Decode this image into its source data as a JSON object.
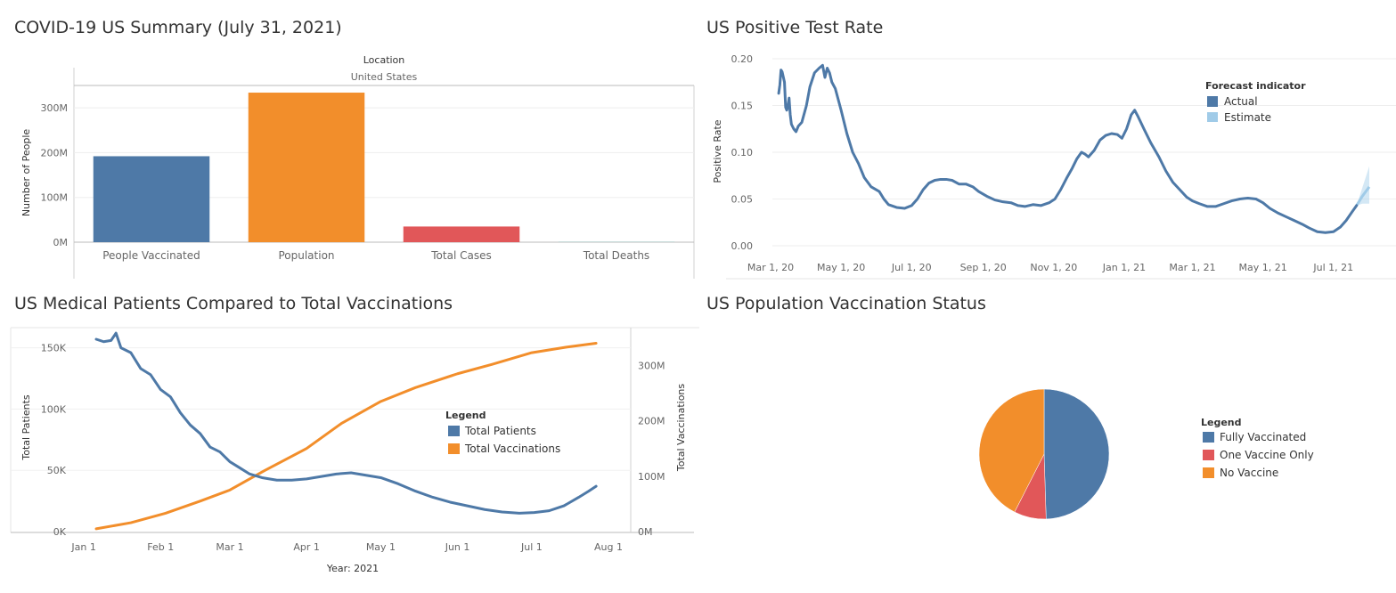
{
  "dashboard": {
    "titles": {
      "summary": "COVID-19 US Summary (July 31, 2021)",
      "positive_rate": "US Positive Test Rate",
      "medical": "US Medical Patients Compared to Total Vaccinations",
      "vax_status": "US Population Vaccination Status"
    }
  },
  "chart_data": [
    {
      "id": "summary",
      "type": "bar",
      "title": "COVID-19 US Summary (July 31, 2021)",
      "header_title": "Location",
      "header_value": "United States",
      "categories": [
        "People Vaccinated",
        "Population",
        "Total Cases",
        "Total Deaths"
      ],
      "values": [
        192000000,
        334000000,
        35000000,
        613000
      ],
      "colors": [
        "#4e79a7",
        "#f28e2b",
        "#e15759",
        "#76b7b2"
      ],
      "ylabel": "Number of People",
      "ylim": [
        0,
        350000000
      ],
      "yticks": [
        {
          "value": 0,
          "label": "0M"
        },
        {
          "value": 100000000,
          "label": "100M"
        },
        {
          "value": 200000000,
          "label": "200M"
        },
        {
          "value": 300000000,
          "label": "300M"
        }
      ]
    },
    {
      "id": "positive_rate",
      "type": "line",
      "title": "US Positive Test Rate",
      "ylabel": "Positive Rate",
      "ylim": [
        0,
        0.2
      ],
      "xlim": [
        "2020-03-01",
        "2021-08-01"
      ],
      "yticks": [
        {
          "value": 0,
          "label": "0.00"
        },
        {
          "value": 0.05,
          "label": "0.05"
        },
        {
          "value": 0.1,
          "label": "0.10"
        },
        {
          "value": 0.15,
          "label": "0.15"
        },
        {
          "value": 0.2,
          "label": "0.20"
        }
      ],
      "xticks": [
        {
          "value": "2020-03-01",
          "label": "Mar 1, 20"
        },
        {
          "value": "2020-05-01",
          "label": "May 1, 20"
        },
        {
          "value": "2020-07-01",
          "label": "Jul 1, 20"
        },
        {
          "value": "2020-09-01",
          "label": "Sep 1, 20"
        },
        {
          "value": "2020-11-01",
          "label": "Nov 1, 20"
        },
        {
          "value": "2021-01-01",
          "label": "Jan 1, 21"
        },
        {
          "value": "2021-03-01",
          "label": "Mar 1, 21"
        },
        {
          "value": "2021-05-01",
          "label": "May 1, 21"
        },
        {
          "value": "2021-07-01",
          "label": "Jul 1, 21"
        }
      ],
      "legend_title": "Forecast indicator",
      "legend": [
        {
          "name": "Actual",
          "color": "#4e79a7"
        },
        {
          "name": "Estimate",
          "color": "#a0cbe8"
        }
      ],
      "series": [
        {
          "name": "Actual",
          "color": "#4e79a7",
          "points": [
            [
              "2020-03-08",
              0.163
            ],
            [
              "2020-03-09",
              0.172
            ],
            [
              "2020-03-10",
              0.188
            ],
            [
              "2020-03-11",
              0.186
            ],
            [
              "2020-03-13",
              0.175
            ],
            [
              "2020-03-14",
              0.148
            ],
            [
              "2020-03-15",
              0.145
            ],
            [
              "2020-03-16",
              0.15
            ],
            [
              "2020-03-17",
              0.158
            ],
            [
              "2020-03-18",
              0.14
            ],
            [
              "2020-03-19",
              0.13
            ],
            [
              "2020-03-21",
              0.125
            ],
            [
              "2020-03-23",
              0.122
            ],
            [
              "2020-03-25",
              0.128
            ],
            [
              "2020-03-28",
              0.132
            ],
            [
              "2020-04-01",
              0.15
            ],
            [
              "2020-04-04",
              0.17
            ],
            [
              "2020-04-08",
              0.185
            ],
            [
              "2020-04-12",
              0.19
            ],
            [
              "2020-04-15",
              0.193
            ],
            [
              "2020-04-17",
              0.18
            ],
            [
              "2020-04-19",
              0.19
            ],
            [
              "2020-04-21",
              0.185
            ],
            [
              "2020-04-23",
              0.175
            ],
            [
              "2020-04-26",
              0.168
            ],
            [
              "2020-05-01",
              0.145
            ],
            [
              "2020-05-06",
              0.12
            ],
            [
              "2020-05-11",
              0.1
            ],
            [
              "2020-05-16",
              0.088
            ],
            [
              "2020-05-21",
              0.073
            ],
            [
              "2020-05-27",
              0.063
            ],
            [
              "2020-06-03",
              0.058
            ],
            [
              "2020-06-07",
              0.05
            ],
            [
              "2020-06-11",
              0.044
            ],
            [
              "2020-06-18",
              0.041
            ],
            [
              "2020-06-25",
              0.04
            ],
            [
              "2020-07-01",
              0.043
            ],
            [
              "2020-07-06",
              0.05
            ],
            [
              "2020-07-11",
              0.06
            ],
            [
              "2020-07-16",
              0.067
            ],
            [
              "2020-07-21",
              0.07
            ],
            [
              "2020-07-26",
              0.071
            ],
            [
              "2020-07-31",
              0.071
            ],
            [
              "2020-08-05",
              0.07
            ],
            [
              "2020-08-11",
              0.066
            ],
            [
              "2020-08-17",
              0.066
            ],
            [
              "2020-08-23",
              0.063
            ],
            [
              "2020-08-28",
              0.058
            ],
            [
              "2020-09-04",
              0.053
            ],
            [
              "2020-09-11",
              0.049
            ],
            [
              "2020-09-18",
              0.047
            ],
            [
              "2020-09-25",
              0.046
            ],
            [
              "2020-10-01",
              0.043
            ],
            [
              "2020-10-07",
              0.042
            ],
            [
              "2020-10-14",
              0.044
            ],
            [
              "2020-10-21",
              0.043
            ],
            [
              "2020-10-28",
              0.046
            ],
            [
              "2020-11-02",
              0.05
            ],
            [
              "2020-11-07",
              0.06
            ],
            [
              "2020-11-12",
              0.072
            ],
            [
              "2020-11-17",
              0.083
            ],
            [
              "2020-11-21",
              0.093
            ],
            [
              "2020-11-25",
              0.1
            ],
            [
              "2020-11-28",
              0.098
            ],
            [
              "2020-12-01",
              0.095
            ],
            [
              "2020-12-06",
              0.102
            ],
            [
              "2020-12-11",
              0.113
            ],
            [
              "2020-12-16",
              0.118
            ],
            [
              "2020-12-21",
              0.12
            ],
            [
              "2020-12-26",
              0.119
            ],
            [
              "2020-12-30",
              0.115
            ],
            [
              "2021-01-03",
              0.125
            ],
            [
              "2021-01-07",
              0.14
            ],
            [
              "2021-01-10",
              0.145
            ],
            [
              "2021-01-13",
              0.138
            ],
            [
              "2021-01-18",
              0.125
            ],
            [
              "2021-01-24",
              0.11
            ],
            [
              "2021-01-31",
              0.095
            ],
            [
              "2021-02-06",
              0.08
            ],
            [
              "2021-02-12",
              0.068
            ],
            [
              "2021-02-18",
              0.06
            ],
            [
              "2021-02-24",
              0.052
            ],
            [
              "2021-03-01",
              0.048
            ],
            [
              "2021-03-07",
              0.045
            ],
            [
              "2021-03-14",
              0.042
            ],
            [
              "2021-03-21",
              0.042
            ],
            [
              "2021-03-28",
              0.045
            ],
            [
              "2021-04-04",
              0.048
            ],
            [
              "2021-04-11",
              0.05
            ],
            [
              "2021-04-18",
              0.051
            ],
            [
              "2021-04-25",
              0.05
            ],
            [
              "2021-05-01",
              0.046
            ],
            [
              "2021-05-07",
              0.04
            ],
            [
              "2021-05-14",
              0.035
            ],
            [
              "2021-05-21",
              0.031
            ],
            [
              "2021-05-28",
              0.027
            ],
            [
              "2021-06-04",
              0.023
            ],
            [
              "2021-06-10",
              0.019
            ],
            [
              "2021-06-17",
              0.015
            ],
            [
              "2021-06-24",
              0.014
            ],
            [
              "2021-07-01",
              0.015
            ],
            [
              "2021-07-07",
              0.02
            ],
            [
              "2021-07-12",
              0.027
            ],
            [
              "2021-07-17",
              0.036
            ],
            [
              "2021-07-21",
              0.043
            ]
          ]
        },
        {
          "name": "Estimate",
          "color": "#a0cbe8",
          "points": [
            [
              "2021-07-21",
              0.043
            ],
            [
              "2021-07-26",
              0.053
            ],
            [
              "2021-08-01",
              0.063
            ]
          ],
          "band_upper": [
            [
              "2021-07-21",
              0.043
            ],
            [
              "2021-07-26",
              0.062
            ],
            [
              "2021-08-01",
              0.085
            ]
          ],
          "band_lower": [
            [
              "2021-07-21",
              0.043
            ],
            [
              "2021-07-26",
              0.045
            ],
            [
              "2021-08-01",
              0.045
            ]
          ]
        }
      ]
    },
    {
      "id": "medical",
      "type": "line",
      "title": "US Medical Patients Compared to Total Vaccinations",
      "xlabel": "Year: 2021",
      "ylabel": "Total Patients",
      "y2label": "Total Vaccinations",
      "xlim": [
        "2020-12-28",
        "2021-08-10"
      ],
      "ylim": [
        0,
        165000
      ],
      "y2lim": [
        0,
        365000000
      ],
      "yticks": [
        {
          "value": 0,
          "label": "0K"
        },
        {
          "value": 50000,
          "label": "50K"
        },
        {
          "value": 100000,
          "label": "100K"
        },
        {
          "value": 150000,
          "label": "150K"
        }
      ],
      "y2ticks": [
        {
          "value": 0,
          "label": "0M"
        },
        {
          "value": 100000000,
          "label": "100M"
        },
        {
          "value": 200000000,
          "label": "200M"
        },
        {
          "value": 300000000,
          "label": "300M"
        }
      ],
      "xticks": [
        {
          "value": "2021-01-01",
          "label": "Jan 1"
        },
        {
          "value": "2021-02-01",
          "label": "Feb 1"
        },
        {
          "value": "2021-03-01",
          "label": "Mar 1"
        },
        {
          "value": "2021-04-01",
          "label": "Apr 1"
        },
        {
          "value": "2021-05-01",
          "label": "May 1"
        },
        {
          "value": "2021-06-01",
          "label": "Jun 1"
        },
        {
          "value": "2021-07-01",
          "label": "Jul 1"
        },
        {
          "value": "2021-08-01",
          "label": "Aug 1"
        }
      ],
      "legend_title": "Legend",
      "legend": [
        {
          "name": "Total Patients",
          "color": "#4e79a7"
        },
        {
          "name": "Total Vaccinations",
          "color": "#f28e2b"
        }
      ],
      "series": [
        {
          "name": "Total Patients",
          "color": "#4e79a7",
          "axis": "left",
          "points": [
            [
              "2021-01-06",
              157000
            ],
            [
              "2021-01-09",
              155000
            ],
            [
              "2021-01-12",
              156000
            ],
            [
              "2021-01-14",
              162000
            ],
            [
              "2021-01-16",
              150000
            ],
            [
              "2021-01-20",
              146000
            ],
            [
              "2021-01-24",
              133000
            ],
            [
              "2021-01-28",
              128000
            ],
            [
              "2021-02-01",
              116000
            ],
            [
              "2021-02-05",
              110000
            ],
            [
              "2021-02-09",
              97000
            ],
            [
              "2021-02-13",
              87000
            ],
            [
              "2021-02-17",
              80000
            ],
            [
              "2021-02-21",
              69000
            ],
            [
              "2021-02-25",
              65000
            ],
            [
              "2021-03-01",
              57000
            ],
            [
              "2021-03-05",
              52000
            ],
            [
              "2021-03-09",
              47000
            ],
            [
              "2021-03-14",
              44000
            ],
            [
              "2021-03-20",
              42000
            ],
            [
              "2021-03-26",
              42000
            ],
            [
              "2021-04-01",
              43000
            ],
            [
              "2021-04-07",
              45000
            ],
            [
              "2021-04-13",
              47000
            ],
            [
              "2021-04-19",
              48000
            ],
            [
              "2021-04-25",
              46000
            ],
            [
              "2021-05-01",
              44000
            ],
            [
              "2021-05-08",
              39000
            ],
            [
              "2021-05-15",
              33000
            ],
            [
              "2021-05-22",
              28000
            ],
            [
              "2021-05-29",
              24000
            ],
            [
              "2021-06-05",
              21000
            ],
            [
              "2021-06-12",
              18000
            ],
            [
              "2021-06-19",
              16000
            ],
            [
              "2021-06-26",
              15000
            ],
            [
              "2021-07-02",
              15500
            ],
            [
              "2021-07-08",
              17000
            ],
            [
              "2021-07-14",
              21000
            ],
            [
              "2021-07-20",
              28000
            ],
            [
              "2021-07-24",
              33000
            ],
            [
              "2021-07-27",
              37000
            ]
          ]
        },
        {
          "name": "Total Vaccinations",
          "color": "#f28e2b",
          "axis": "right",
          "points": [
            [
              "2021-01-06",
              5000000
            ],
            [
              "2021-01-20",
              16000000
            ],
            [
              "2021-02-03",
              33000000
            ],
            [
              "2021-02-17",
              55000000
            ],
            [
              "2021-03-01",
              75000000
            ],
            [
              "2021-03-15",
              110000000
            ],
            [
              "2021-04-01",
              150000000
            ],
            [
              "2021-04-15",
              195000000
            ],
            [
              "2021-05-01",
              235000000
            ],
            [
              "2021-05-15",
              260000000
            ],
            [
              "2021-06-01",
              285000000
            ],
            [
              "2021-06-15",
              302000000
            ],
            [
              "2021-07-01",
              323000000
            ],
            [
              "2021-07-15",
              333000000
            ],
            [
              "2021-07-27",
              340000000
            ]
          ]
        }
      ]
    },
    {
      "id": "vax_status",
      "type": "pie",
      "title": "US Population Vaccination Status",
      "legend_title": "Legend",
      "slices": [
        {
          "name": "Fully Vaccinated",
          "value": 49.5,
          "color": "#4e79a7"
        },
        {
          "name": "One Vaccine Only",
          "value": 8,
          "color": "#e15759"
        },
        {
          "name": "No Vaccine",
          "value": 42.5,
          "color": "#f28e2b"
        }
      ]
    }
  ]
}
